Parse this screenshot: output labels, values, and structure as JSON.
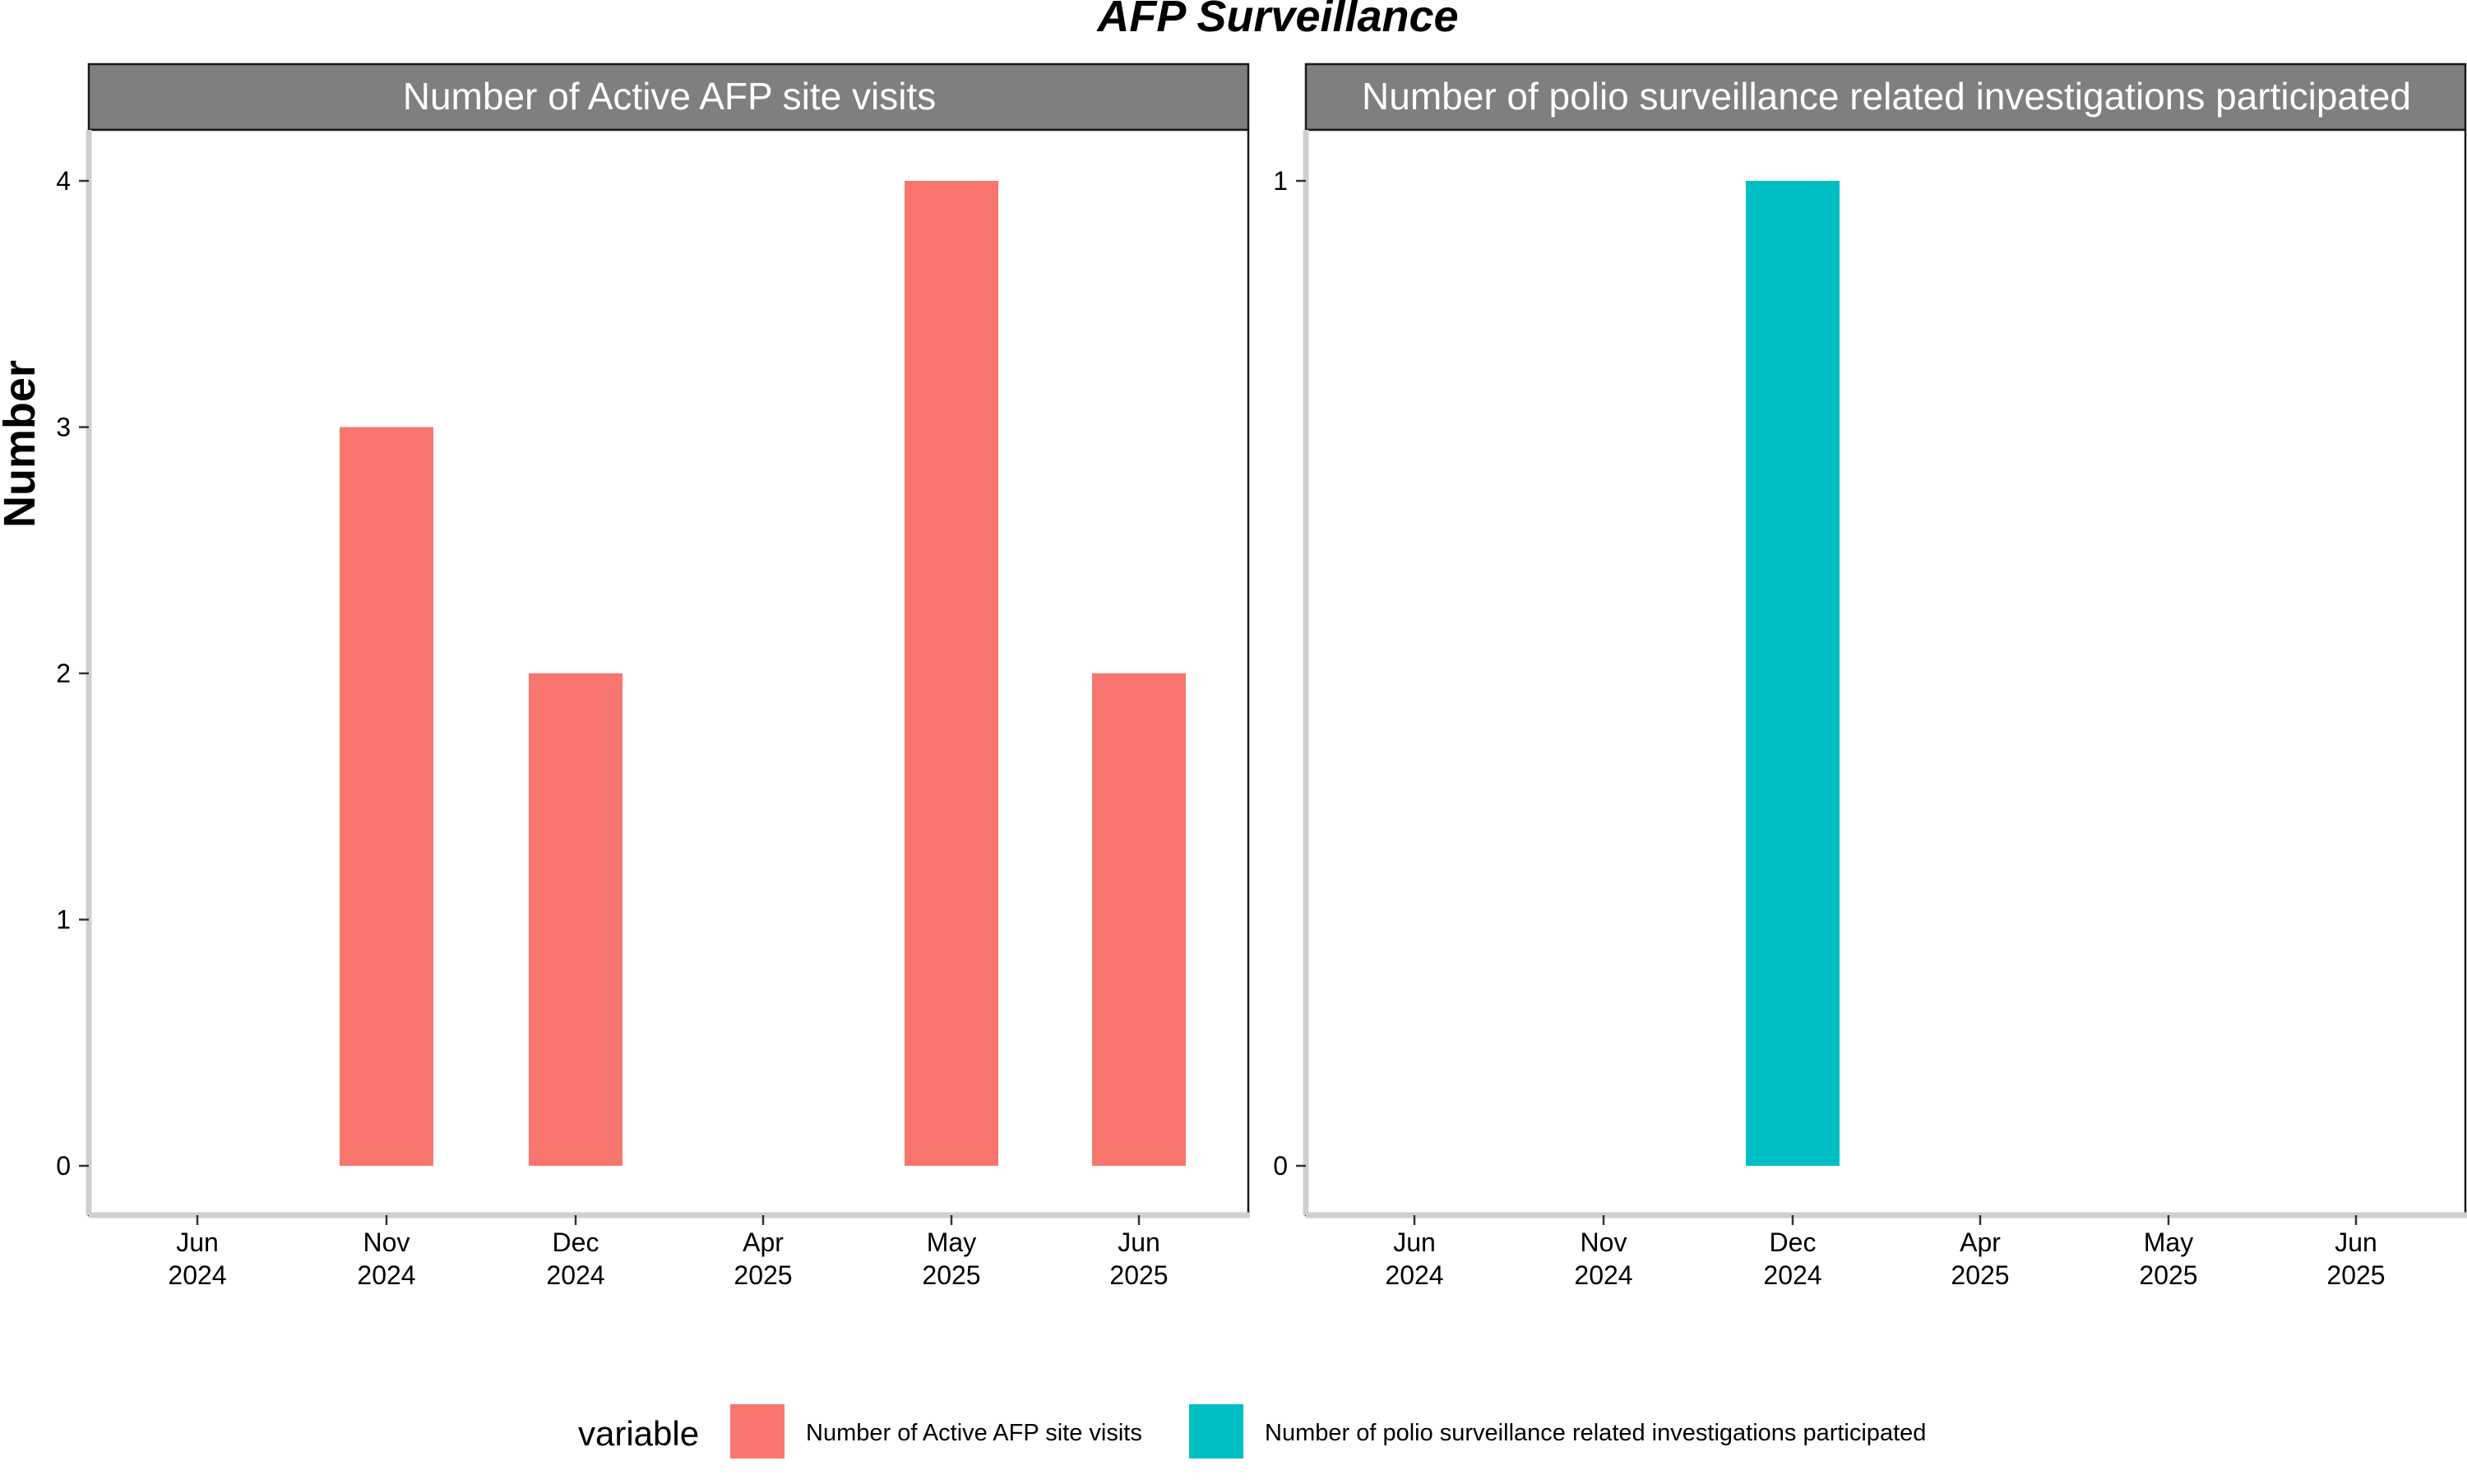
{
  "chart_data": {
    "type": "bar",
    "title": "AFP Surveillance",
    "ylabel": "Number",
    "xlabel": "",
    "grid": false,
    "legend": {
      "title": "variable",
      "position": "bottom",
      "entries": [
        {
          "label": "Number of Active AFP site visits",
          "color": "#F8766D"
        },
        {
          "label": "Number of polio surveillance related investigations participated",
          "color": "#00BFC4"
        }
      ]
    },
    "categories": [
      "Jun 2024",
      "Nov 2024",
      "Dec 2024",
      "Apr 2025",
      "May 2025",
      "Jun 2025"
    ],
    "panels": [
      {
        "strip": "Number of Active AFP site visits",
        "color": "#F8766D",
        "x_ticks": [
          [
            "Jun",
            "2024"
          ],
          [
            "Nov",
            "2024"
          ],
          [
            "Dec",
            "2024"
          ],
          [
            "Apr",
            "2025"
          ],
          [
            "May",
            "2025"
          ],
          [
            "Jun",
            "2025"
          ]
        ],
        "y_ticks": [
          0,
          1,
          2,
          3,
          4
        ],
        "ylim": [
          -0.19,
          4.2
        ],
        "bars": [
          {
            "x": "Nov 2024",
            "value": 3
          },
          {
            "x": "Dec 2024",
            "value": 2
          },
          {
            "x": "May 2025",
            "value": 4
          },
          {
            "x": "Jun 2025",
            "value": 2
          }
        ]
      },
      {
        "strip": "Number of polio surveillance related investigations participated",
        "color": "#00BFC4",
        "x_ticks": [
          [
            "Jun",
            "2024"
          ],
          [
            "Nov",
            "2024"
          ],
          [
            "Dec",
            "2024"
          ],
          [
            "Apr",
            "2025"
          ],
          [
            "May",
            "2025"
          ],
          [
            "Jun",
            "2025"
          ]
        ],
        "y_ticks": [
          0,
          1
        ],
        "ylim": [
          -0.048,
          1.05
        ],
        "bars": [
          {
            "x": "Dec 2024",
            "value": 1
          }
        ]
      }
    ]
  }
}
